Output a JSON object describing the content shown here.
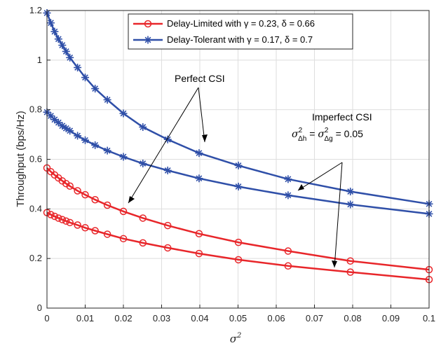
{
  "chart_data": {
    "type": "line",
    "xlabel": "σ",
    "xlabel_sup": "2",
    "ylabel": "Throughput (bps/Hz)",
    "xlim": [
      0,
      0.1
    ],
    "ylim": [
      0,
      1.2
    ],
    "xticks": [
      "0",
      "0.01",
      "0.02",
      "0.03",
      "0.04",
      "0.05",
      "0.06",
      "0.07",
      "0.08",
      "0.09",
      "0.1"
    ],
    "yticks": [
      "0",
      "0.2",
      "0.4",
      "0.6",
      "0.8",
      "1",
      "1.2"
    ],
    "grid": true,
    "legend_position": "top-right",
    "legend": [
      {
        "label": "Delay-Limited with γ = 0.23, δ = 0.66",
        "color": "#e8262a",
        "marker": "circle"
      },
      {
        "label": "Delay-Tolerant with γ = 0.17, δ = 0.7",
        "color": "#2f4fa8",
        "marker": "asterisk"
      }
    ],
    "series": [
      {
        "group": "Delay-Tolerant",
        "csi": "Perfect CSI",
        "color": "#2f4fa8",
        "marker": "asterisk",
        "x": [
          0,
          0.001,
          0.002,
          0.003,
          0.004,
          0.005,
          0.006,
          0.008,
          0.01,
          0.0126,
          0.0158,
          0.02,
          0.0251,
          0.0316,
          0.0398,
          0.0501,
          0.0631,
          0.0794,
          0.1
        ],
        "values": [
          1.19,
          1.15,
          1.115,
          1.085,
          1.06,
          1.035,
          1.01,
          0.97,
          0.93,
          0.885,
          0.84,
          0.785,
          0.73,
          0.68,
          0.625,
          0.575,
          0.52,
          0.47,
          0.42
        ]
      },
      {
        "group": "Delay-Tolerant",
        "csi": "Imperfect CSI",
        "color": "#2f4fa8",
        "marker": "asterisk",
        "x": [
          0,
          0.001,
          0.002,
          0.003,
          0.004,
          0.005,
          0.006,
          0.008,
          0.01,
          0.0126,
          0.0158,
          0.02,
          0.0251,
          0.0316,
          0.0398,
          0.0501,
          0.0631,
          0.0794,
          0.1
        ],
        "values": [
          0.79,
          0.775,
          0.76,
          0.748,
          0.735,
          0.725,
          0.715,
          0.695,
          0.677,
          0.657,
          0.635,
          0.61,
          0.583,
          0.555,
          0.523,
          0.49,
          0.455,
          0.418,
          0.38
        ]
      },
      {
        "group": "Delay-Limited",
        "csi": "Perfect CSI",
        "color": "#e8262a",
        "marker": "circle",
        "x": [
          0,
          0.001,
          0.002,
          0.003,
          0.004,
          0.005,
          0.006,
          0.008,
          0.01,
          0.0126,
          0.0158,
          0.02,
          0.0251,
          0.0316,
          0.0398,
          0.0501,
          0.0631,
          0.0794,
          0.1
        ],
        "values": [
          0.565,
          0.55,
          0.537,
          0.525,
          0.513,
          0.502,
          0.492,
          0.473,
          0.457,
          0.437,
          0.415,
          0.39,
          0.363,
          0.333,
          0.3,
          0.265,
          0.23,
          0.19,
          0.155
        ]
      },
      {
        "group": "Delay-Limited",
        "csi": "Imperfect CSI",
        "color": "#e8262a",
        "marker": "circle",
        "x": [
          0,
          0.001,
          0.002,
          0.003,
          0.004,
          0.005,
          0.006,
          0.008,
          0.01,
          0.0126,
          0.0158,
          0.02,
          0.0251,
          0.0316,
          0.0398,
          0.0501,
          0.0631,
          0.0794,
          0.1
        ],
        "values": [
          0.385,
          0.377,
          0.37,
          0.363,
          0.357,
          0.351,
          0.345,
          0.335,
          0.324,
          0.312,
          0.298,
          0.28,
          0.263,
          0.243,
          0.22,
          0.195,
          0.17,
          0.145,
          0.115
        ]
      }
    ],
    "annotations": [
      {
        "text": "Perfect CSI"
      },
      {
        "text": "Imperfect CSI"
      },
      {
        "text": "σ²Δh = σ²Δg = 0.05"
      }
    ]
  }
}
